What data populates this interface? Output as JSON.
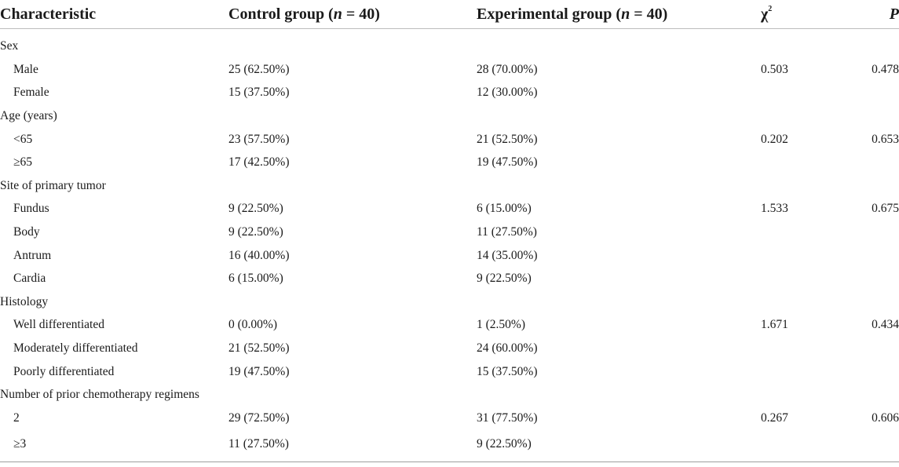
{
  "header": {
    "col_characteristic": "Characteristic",
    "col_control_prefix": "Control group (",
    "col_control_n": "n",
    "col_control_suffix": " = 40)",
    "col_exp_prefix": "Experimental group (",
    "col_exp_n": "n",
    "col_exp_suffix": " = 40)",
    "col_chi": "χ",
    "col_chi_sup": "2",
    "col_p": "P"
  },
  "rows": [
    {
      "label": "Sex",
      "section": true,
      "control": "",
      "experimental": "",
      "chi": "",
      "p": ""
    },
    {
      "label": "Male",
      "section": false,
      "control": "25 (62.50%)",
      "experimental": "28 (70.00%)",
      "chi": "0.503",
      "p": "0.478"
    },
    {
      "label": "Female",
      "section": false,
      "control": "15 (37.50%)",
      "experimental": "12 (30.00%)",
      "chi": "",
      "p": ""
    },
    {
      "label": "Age (years)",
      "section": true,
      "control": "",
      "experimental": "",
      "chi": "",
      "p": ""
    },
    {
      "label": "<65",
      "section": false,
      "control": "23 (57.50%)",
      "experimental": "21 (52.50%)",
      "chi": "0.202",
      "p": "0.653"
    },
    {
      "label": "≥65",
      "section": false,
      "control": "17 (42.50%)",
      "experimental": "19 (47.50%)",
      "chi": "",
      "p": ""
    },
    {
      "label": "Site of primary tumor",
      "section": true,
      "control": "",
      "experimental": "",
      "chi": "",
      "p": ""
    },
    {
      "label": "Fundus",
      "section": false,
      "control": "9 (22.50%)",
      "experimental": "6 (15.00%)",
      "chi": "1.533",
      "p": "0.675"
    },
    {
      "label": "Body",
      "section": false,
      "control": "9 (22.50%)",
      "experimental": "11 (27.50%)",
      "chi": "",
      "p": ""
    },
    {
      "label": "Antrum",
      "section": false,
      "control": "16 (40.00%)",
      "experimental": "14 (35.00%)",
      "chi": "",
      "p": ""
    },
    {
      "label": "Cardia",
      "section": false,
      "control": "6 (15.00%)",
      "experimental": "9 (22.50%)",
      "chi": "",
      "p": ""
    },
    {
      "label": "Histology",
      "section": true,
      "control": "",
      "experimental": "",
      "chi": "",
      "p": ""
    },
    {
      "label": "Well differentiated",
      "section": false,
      "control": "0 (0.00%)",
      "experimental": "1 (2.50%)",
      "chi": "1.671",
      "p": "0.434"
    },
    {
      "label": "Moderately differentiated",
      "section": false,
      "control": "21 (52.50%)",
      "experimental": "24 (60.00%)",
      "chi": "",
      "p": ""
    },
    {
      "label": "Poorly differentiated",
      "section": false,
      "control": "19 (47.50%)",
      "experimental": "15 (37.50%)",
      "chi": "",
      "p": ""
    },
    {
      "label": "Number of prior chemotherapy regimens",
      "section": true,
      "control": "",
      "experimental": "",
      "chi": "",
      "p": ""
    },
    {
      "label": "2",
      "section": false,
      "control": "29 (72.50%)",
      "experimental": "31 (77.50%)",
      "chi": "0.267",
      "p": "0.606"
    },
    {
      "label": "≥3",
      "section": false,
      "control": "11 (27.50%)",
      "experimental": "9 (22.50%)",
      "chi": "",
      "p": ""
    }
  ]
}
